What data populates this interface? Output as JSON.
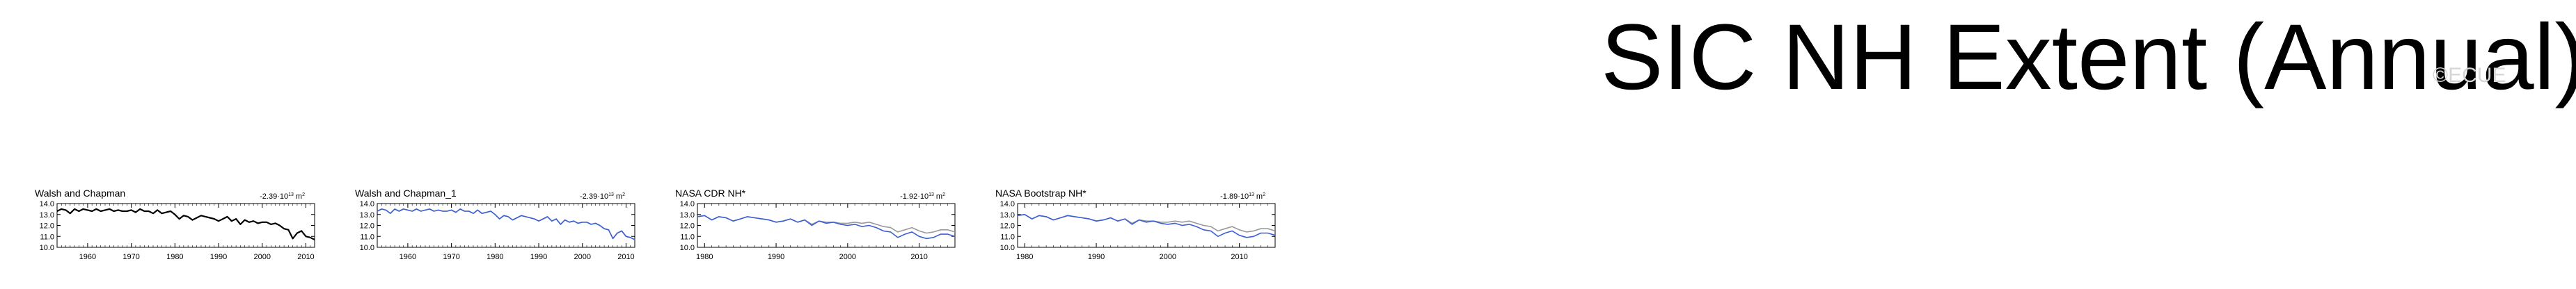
{
  "figure": {
    "title": "SIC NH Extent (Annual)",
    "watermark": "©ECUE"
  },
  "chart_data": [
    {
      "type": "line",
      "title": "Walsh and Chapman",
      "trend_coefficient": "-2.39",
      "trend_exponent": "13",
      "trend_units": "m",
      "trend_units_exponent": "2",
      "xlim": [
        1953,
        2012
      ],
      "ylim": [
        10.0,
        14.0
      ],
      "xticks": [
        1960,
        1970,
        1980,
        1990,
        2000,
        2010
      ],
      "yticks": [
        "10.0",
        "11.0",
        "12.0",
        "13.0",
        "14.0"
      ],
      "series": [
        {
          "color": "#000000",
          "x": [
            1953,
            1954,
            1955,
            1956,
            1957,
            1958,
            1959,
            1960,
            1961,
            1962,
            1963,
            1964,
            1965,
            1966,
            1967,
            1968,
            1969,
            1970,
            1971,
            1972,
            1973,
            1974,
            1975,
            1976,
            1977,
            1978,
            1979,
            1980,
            1981,
            1982,
            1983,
            1984,
            1985,
            1986,
            1987,
            1988,
            1989,
            1990,
            1991,
            1992,
            1993,
            1994,
            1995,
            1996,
            1997,
            1998,
            1999,
            2000,
            2001,
            2002,
            2003,
            2004,
            2005,
            2006,
            2007,
            2008,
            2009,
            2010,
            2011,
            2012
          ],
          "values": [
            13.3,
            13.5,
            13.4,
            13.1,
            13.5,
            13.3,
            13.5,
            13.4,
            13.3,
            13.5,
            13.3,
            13.4,
            13.5,
            13.3,
            13.4,
            13.3,
            13.3,
            13.4,
            13.2,
            13.5,
            13.3,
            13.3,
            13.1,
            13.4,
            13.1,
            13.2,
            13.3,
            13.0,
            12.6,
            12.9,
            12.8,
            12.5,
            12.7,
            12.9,
            12.8,
            12.7,
            12.6,
            12.4,
            12.6,
            12.8,
            12.4,
            12.6,
            12.1,
            12.5,
            12.3,
            12.4,
            12.2,
            12.3,
            12.3,
            12.1,
            12.2,
            12.0,
            11.7,
            11.6,
            10.8,
            11.3,
            11.5,
            11.0,
            10.9,
            10.7
          ]
        }
      ]
    },
    {
      "type": "line",
      "title": "Walsh and Chapman_1",
      "trend_coefficient": "-2.39",
      "trend_exponent": "13",
      "trend_units": "m",
      "trend_units_exponent": "2",
      "xlim": [
        1953,
        2012
      ],
      "ylim": [
        10.0,
        14.0
      ],
      "xticks": [
        1960,
        1970,
        1980,
        1990,
        2000,
        2010
      ],
      "yticks": [
        "10.0",
        "11.0",
        "12.0",
        "13.0",
        "14.0"
      ],
      "series": [
        {
          "color": "#3c5fd6",
          "x": [
            1953,
            1954,
            1955,
            1956,
            1957,
            1958,
            1959,
            1960,
            1961,
            1962,
            1963,
            1964,
            1965,
            1966,
            1967,
            1968,
            1969,
            1970,
            1971,
            1972,
            1973,
            1974,
            1975,
            1976,
            1977,
            1978,
            1979,
            1980,
            1981,
            1982,
            1983,
            1984,
            1985,
            1986,
            1987,
            1988,
            1989,
            1990,
            1991,
            1992,
            1993,
            1994,
            1995,
            1996,
            1997,
            1998,
            1999,
            2000,
            2001,
            2002,
            2003,
            2004,
            2005,
            2006,
            2007,
            2008,
            2009,
            2010,
            2011,
            2012
          ],
          "values": [
            13.3,
            13.5,
            13.4,
            13.1,
            13.5,
            13.3,
            13.5,
            13.4,
            13.3,
            13.5,
            13.3,
            13.4,
            13.5,
            13.3,
            13.4,
            13.3,
            13.3,
            13.4,
            13.2,
            13.5,
            13.3,
            13.3,
            13.1,
            13.4,
            13.1,
            13.2,
            13.3,
            13.0,
            12.6,
            12.9,
            12.8,
            12.5,
            12.7,
            12.9,
            12.8,
            12.7,
            12.6,
            12.4,
            12.6,
            12.8,
            12.4,
            12.6,
            12.1,
            12.5,
            12.3,
            12.4,
            12.2,
            12.3,
            12.3,
            12.1,
            12.2,
            12.0,
            11.7,
            11.6,
            10.8,
            11.3,
            11.5,
            11.0,
            10.9,
            10.7
          ]
        },
        {
          "color": "#9a9a9a",
          "x": [
            1953,
            1954,
            1955,
            1956,
            1957,
            1958,
            1959,
            1960,
            1961,
            1962,
            1963,
            1964,
            1965,
            1966,
            1967,
            1968,
            1969,
            1970,
            1971,
            1972,
            1973,
            1974,
            1975,
            1976,
            1977,
            1978,
            1979,
            1980,
            1981,
            1982,
            1983,
            1984,
            1985,
            1986,
            1987,
            1988,
            1989,
            1990,
            1991,
            1992,
            1993,
            1994,
            1995,
            1996,
            1997,
            1998,
            1999,
            2000,
            2001,
            2002,
            2003,
            2004,
            2005,
            2006,
            2007,
            2008,
            2009,
            2010,
            2011,
            2012
          ],
          "values": [
            13.3,
            13.5,
            13.4,
            13.1,
            13.5,
            13.3,
            13.5,
            13.4,
            13.3,
            13.5,
            13.3,
            13.4,
            13.5,
            13.3,
            13.4,
            13.3,
            13.3,
            13.4,
            13.2,
            13.5,
            13.3,
            13.3,
            13.1,
            13.4,
            13.1,
            13.2,
            13.3,
            13.0,
            12.6,
            12.9,
            12.8,
            12.5,
            12.7,
            12.9,
            12.8,
            12.7,
            12.6,
            12.4,
            12.6,
            12.8,
            12.4,
            12.6,
            12.1,
            12.5,
            12.3,
            12.4,
            12.2,
            12.3,
            12.3,
            12.1,
            12.2,
            12.0,
            11.7,
            11.6,
            10.8,
            11.3,
            11.5,
            11.0,
            10.9,
            10.7
          ]
        }
      ]
    },
    {
      "type": "line",
      "title": "NASA CDR NH*",
      "trend_coefficient": "-1.92",
      "trend_exponent": "13",
      "trend_units": "m",
      "trend_units_exponent": "2",
      "xlim": [
        1979,
        2015
      ],
      "ylim": [
        10.0,
        14.0
      ],
      "xticks": [
        1980,
        1990,
        2000,
        2010
      ],
      "yticks": [
        "10.0",
        "11.0",
        "12.0",
        "13.0",
        "14.0"
      ],
      "series": [
        {
          "color": "#3c5fd6",
          "x": [
            1979,
            1980,
            1981,
            1982,
            1983,
            1984,
            1985,
            1986,
            1987,
            1988,
            1989,
            1990,
            1991,
            1992,
            1993,
            1994,
            1995,
            1996,
            1997,
            1998,
            1999,
            2000,
            2001,
            2002,
            2003,
            2004,
            2005,
            2006,
            2007,
            2008,
            2009,
            2010,
            2011,
            2012,
            2013,
            2014,
            2015
          ],
          "values": [
            12.8,
            12.9,
            12.5,
            12.8,
            12.7,
            12.4,
            12.6,
            12.8,
            12.7,
            12.6,
            12.5,
            12.3,
            12.4,
            12.6,
            12.3,
            12.5,
            12.0,
            12.4,
            12.2,
            12.3,
            12.1,
            12.0,
            12.1,
            11.9,
            12.0,
            11.8,
            11.5,
            11.4,
            10.9,
            11.2,
            11.4,
            11.0,
            10.8,
            10.9,
            11.2,
            11.2,
            11.0
          ]
        },
        {
          "color": "#9a9a9a",
          "x": [
            1979,
            1980,
            1981,
            1982,
            1983,
            1984,
            1985,
            1986,
            1987,
            1988,
            1989,
            1990,
            1991,
            1992,
            1993,
            1994,
            1995,
            1996,
            1997,
            1998,
            1999,
            2000,
            2001,
            2002,
            2003,
            2004,
            2005,
            2006,
            2007,
            2008,
            2009,
            2010,
            2011,
            2012,
            2013,
            2014,
            2015
          ],
          "values": [
            12.8,
            12.9,
            12.5,
            12.8,
            12.7,
            12.4,
            12.6,
            12.8,
            12.7,
            12.6,
            12.5,
            12.3,
            12.4,
            12.6,
            12.3,
            12.5,
            12.1,
            12.4,
            12.3,
            12.3,
            12.2,
            12.2,
            12.3,
            12.2,
            12.3,
            12.1,
            11.9,
            11.8,
            11.4,
            11.6,
            11.8,
            11.5,
            11.3,
            11.4,
            11.6,
            11.6,
            11.4
          ]
        }
      ]
    },
    {
      "type": "line",
      "title": "NASA Bootstrap NH*",
      "trend_coefficient": "-1.89",
      "trend_exponent": "13",
      "trend_units": "m",
      "trend_units_exponent": "2",
      "xlim": [
        1979,
        2015
      ],
      "ylim": [
        10.0,
        14.0
      ],
      "xticks": [
        1980,
        1990,
        2000,
        2010
      ],
      "yticks": [
        "10.0",
        "11.0",
        "12.0",
        "13.0",
        "14.0"
      ],
      "series": [
        {
          "color": "#3c5fd6",
          "x": [
            1979,
            1980,
            1981,
            1982,
            1983,
            1984,
            1985,
            1986,
            1987,
            1988,
            1989,
            1990,
            1991,
            1992,
            1993,
            1994,
            1995,
            1996,
            1997,
            1998,
            1999,
            2000,
            2001,
            2002,
            2003,
            2004,
            2005,
            2006,
            2007,
            2008,
            2009,
            2010,
            2011,
            2012,
            2013,
            2014,
            2015
          ],
          "values": [
            12.9,
            13.0,
            12.6,
            12.9,
            12.8,
            12.5,
            12.7,
            12.9,
            12.8,
            12.7,
            12.6,
            12.4,
            12.5,
            12.7,
            12.4,
            12.6,
            12.1,
            12.5,
            12.3,
            12.4,
            12.2,
            12.1,
            12.2,
            12.0,
            12.1,
            11.9,
            11.6,
            11.5,
            11.0,
            11.3,
            11.5,
            11.1,
            10.9,
            11.0,
            11.3,
            11.3,
            11.1
          ]
        },
        {
          "color": "#9a9a9a",
          "x": [
            1979,
            1980,
            1981,
            1982,
            1983,
            1984,
            1985,
            1986,
            1987,
            1988,
            1989,
            1990,
            1991,
            1992,
            1993,
            1994,
            1995,
            1996,
            1997,
            1998,
            1999,
            2000,
            2001,
            2002,
            2003,
            2004,
            2005,
            2006,
            2007,
            2008,
            2009,
            2010,
            2011,
            2012,
            2013,
            2014,
            2015
          ],
          "values": [
            12.9,
            13.0,
            12.6,
            12.9,
            12.8,
            12.5,
            12.7,
            12.9,
            12.8,
            12.7,
            12.6,
            12.4,
            12.5,
            12.7,
            12.4,
            12.6,
            12.2,
            12.5,
            12.4,
            12.4,
            12.3,
            12.3,
            12.4,
            12.3,
            12.4,
            12.2,
            12.0,
            11.9,
            11.5,
            11.7,
            11.9,
            11.6,
            11.4,
            11.5,
            11.7,
            11.7,
            11.5
          ]
        }
      ]
    }
  ]
}
